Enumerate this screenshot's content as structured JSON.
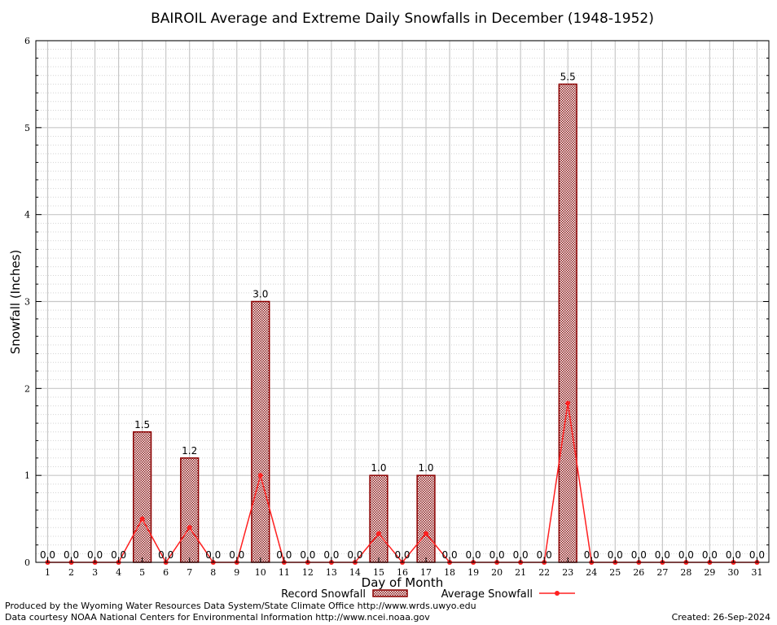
{
  "chart_data": {
    "type": "bar",
    "title": "BAIROIL Average and Extreme Daily Snowfalls in December (1948-1952)",
    "xlabel": "Day of Month",
    "ylabel": "Snowfall (Inches)",
    "ylim": [
      0,
      6
    ],
    "y_ticks": [
      "0",
      "1",
      "2",
      "3",
      "4",
      "5",
      "6"
    ],
    "grid": true,
    "categories": [
      "1",
      "2",
      "3",
      "4",
      "5",
      "6",
      "7",
      "8",
      "9",
      "10",
      "11",
      "12",
      "13",
      "14",
      "15",
      "16",
      "17",
      "18",
      "19",
      "20",
      "21",
      "22",
      "23",
      "24",
      "25",
      "26",
      "27",
      "28",
      "29",
      "30",
      "31"
    ],
    "series": [
      {
        "name": "Record Snowfall",
        "kind": "bar",
        "values": [
          0,
          0,
          0,
          0,
          1.5,
          0,
          1.2,
          0,
          0,
          3.0,
          0,
          0,
          0,
          0,
          1.0,
          0,
          1.0,
          0,
          0,
          0,
          0,
          0,
          5.5,
          0,
          0,
          0,
          0,
          0,
          0,
          0,
          0
        ],
        "labels": [
          "0.0",
          "0.0",
          "0.0",
          "0.0",
          "1.5",
          "0.0",
          "1.2",
          "0.0",
          "0.0",
          "3.0",
          "0.0",
          "0.0",
          "0.0",
          "0.0",
          "1.0",
          "0.0",
          "1.0",
          "0.0",
          "0.0",
          "0.0",
          "0.0",
          "0.0",
          "5.5",
          "0.0",
          "0.0",
          "0.0",
          "0.0",
          "0.0",
          "0.0",
          "0.0",
          "0.0"
        ]
      },
      {
        "name": "Average Snowfall",
        "kind": "line",
        "values": [
          0,
          0,
          0,
          0,
          0.5,
          0,
          0.4,
          0,
          0,
          1.0,
          0,
          0,
          0,
          0,
          0.33,
          0,
          0.33,
          0,
          0,
          0,
          0,
          0,
          1.83,
          0,
          0,
          0,
          0,
          0,
          0,
          0,
          0
        ]
      }
    ],
    "colors": {
      "bar_edge": "#8b0000",
      "bar_fill": "#c8a9a9",
      "line": "#ff2020",
      "grid": "#c8c8c8"
    },
    "legend_placement": "bottom-center"
  },
  "footer": {
    "produced_by": "Produced by the Wyoming Water Resources Data System/State Climate Office http://www.wrds.uwyo.edu",
    "courtesy": "Data courtesy NOAA National Centers for Environmental Information http://www.ncei.noaa.gov",
    "created": "Created:  26-Sep-2024"
  }
}
